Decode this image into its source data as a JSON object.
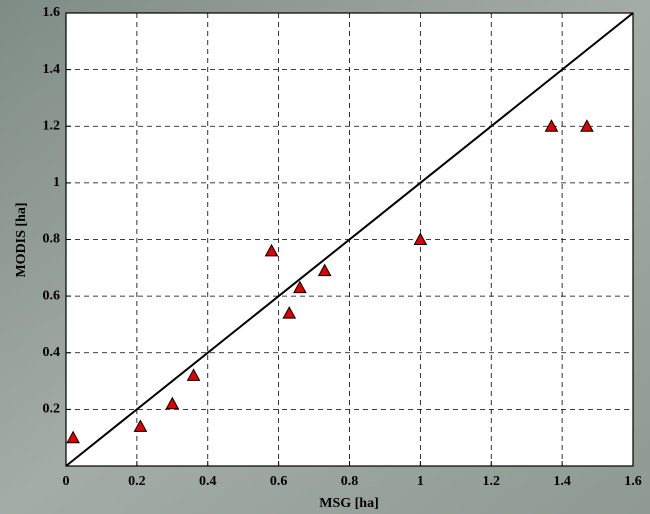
{
  "chart_data": {
    "type": "scatter",
    "x_label": "MSG [ha]",
    "y_label": "MODIS [ha]",
    "x": [
      0.02,
      0.21,
      0.3,
      0.36,
      0.58,
      0.63,
      0.66,
      0.73,
      1.0,
      1.37,
      1.47
    ],
    "series": [
      {
        "color": "#e00000",
        "values": [
          0.1,
          0.14,
          0.22,
          0.32,
          0.76,
          0.54,
          0.63,
          0.69,
          0.8,
          1.2,
          1.2
        ]
      }
    ],
    "xlim": [
      0,
      1.6
    ],
    "ylim": [
      0,
      1.6
    ],
    "xticks": [
      0,
      0.2,
      0.4,
      0.6,
      0.8,
      1,
      1.2,
      1.4,
      1.6
    ],
    "yticks": [
      0.2,
      0.4,
      0.6,
      0.8,
      1,
      1.2,
      1.4,
      1.6
    ],
    "grid": true
  }
}
